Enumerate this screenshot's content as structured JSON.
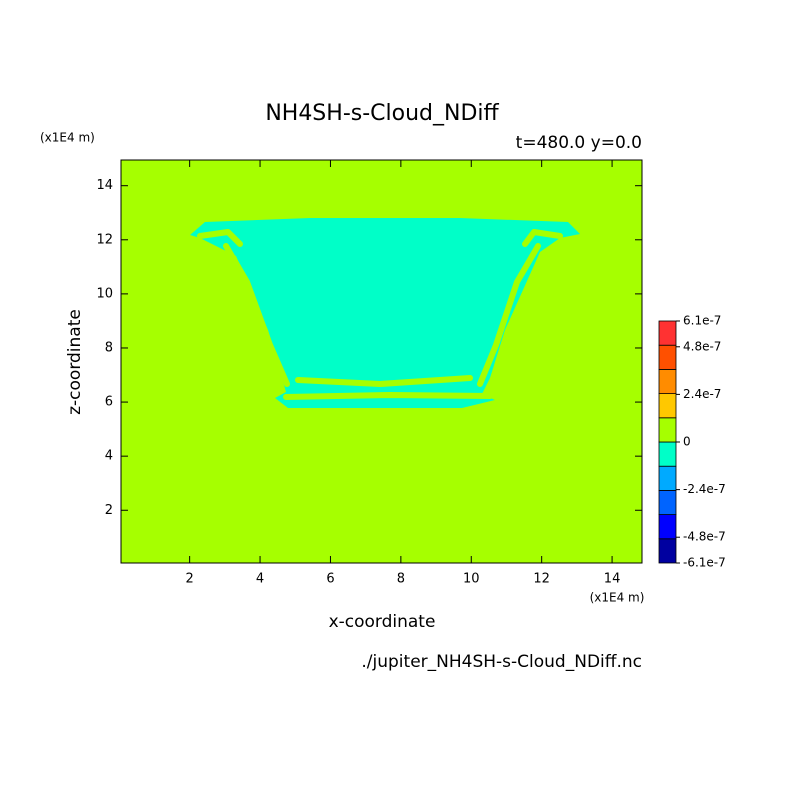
{
  "chart_data": {
    "type": "contour",
    "title": "NH4SH-s-Cloud_NDiff",
    "subtitle": "t=480.0 y=0.0",
    "x_label": "x-coordinate",
    "y_label": "z-coordinate",
    "x_unit": "(x1E4 m)",
    "y_unit": "(x1E4 m)",
    "file_label": "./jupiter_NH4SH-s-Cloud_NDiff.nc",
    "xlim": [
      0.05,
      14.85
    ],
    "ylim": [
      0.05,
      14.95
    ],
    "xticks": [
      2,
      4,
      6,
      8,
      10,
      12,
      14
    ],
    "yticks": [
      2,
      4,
      6,
      8,
      10,
      12,
      14
    ],
    "background_color": "#a6ff00",
    "region_color": "#00ffc8",
    "clim": [
      -6.1e-07,
      6.1e-07
    ],
    "cticks": [
      -6.1e-07,
      -4.8e-07,
      -2.4e-07,
      0,
      2.4e-07,
      4.8e-07,
      6.1e-07
    ],
    "colors": [
      "#0000a0",
      "#0000ff",
      "#0064ff",
      "#00aaff",
      "#00ffc8",
      "#a6ff00",
      "#ffc800",
      "#ff8c00",
      "#ff5000",
      "#ff3232"
    ]
  }
}
